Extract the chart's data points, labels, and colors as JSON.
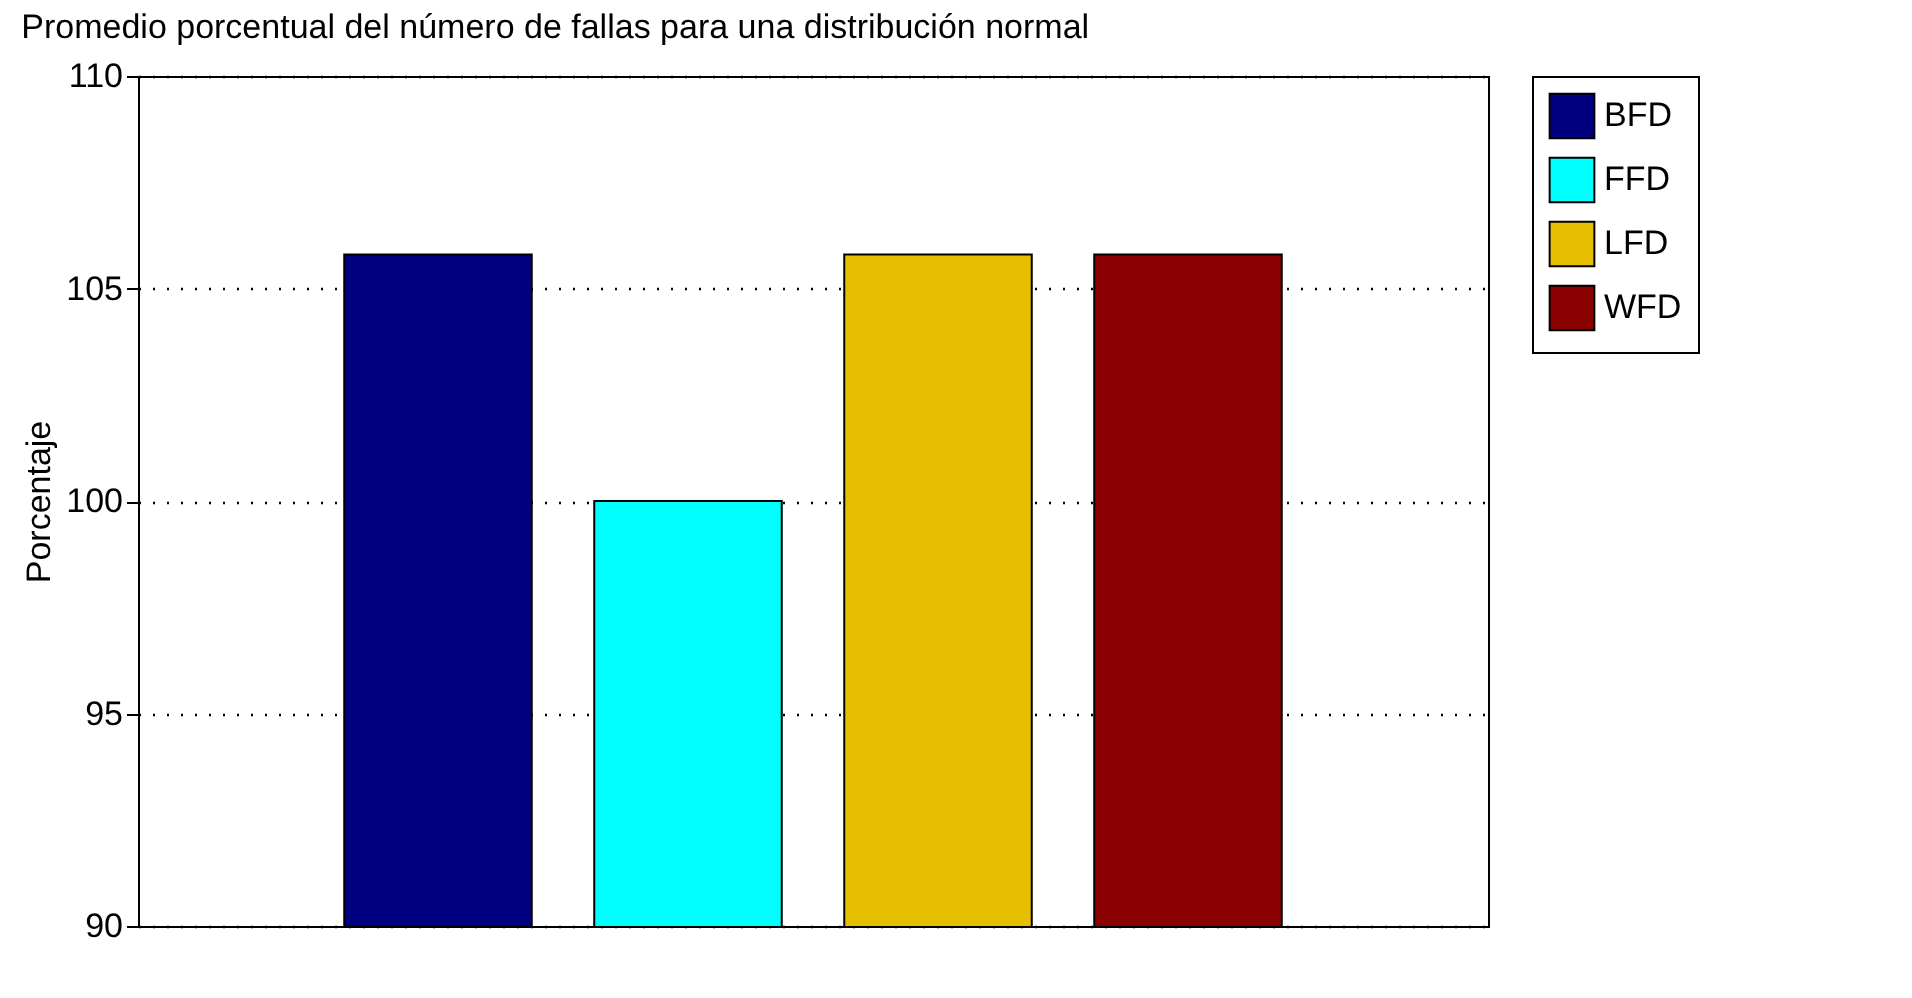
{
  "chart_data": {
    "type": "bar",
    "title": "Promedio porcentual del número de fallas para una distribución normal",
    "ylabel": "Porcentaje",
    "categories": [
      null
    ],
    "series": [
      {
        "name": "BFD",
        "color": "#000080",
        "values": [
          105.8
        ]
      },
      {
        "name": "FFD",
        "color": "#00ffff",
        "values": [
          100
        ]
      },
      {
        "name": "LFD",
        "color": "#e6c000",
        "values": [
          105.8
        ]
      },
      {
        "name": "WFD",
        "color": "#8b0000",
        "values": [
          105.8
        ]
      }
    ],
    "ylim": [
      90,
      110
    ],
    "yticks": [
      90,
      95,
      100,
      105,
      110
    ],
    "grid": "y",
    "legend": "right"
  }
}
